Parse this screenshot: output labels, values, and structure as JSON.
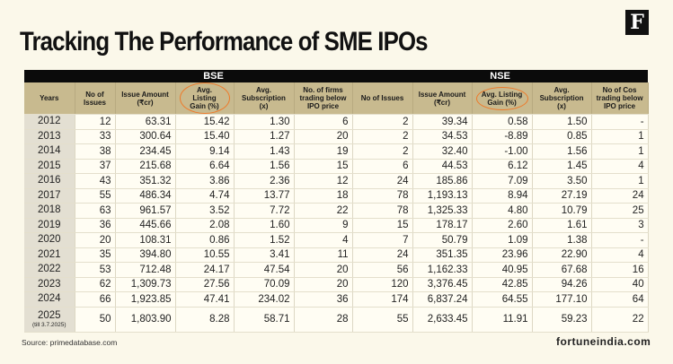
{
  "title": "Tracking The Performance of SME IPOs",
  "logo": "F",
  "groups": {
    "bse": "BSE",
    "nse": "NSE"
  },
  "headers": {
    "years": "Years",
    "bse": [
      "No of Issues",
      "Issue Amount (₹cr)",
      "Avg. Listing Gain (%)",
      "Avg. Subscription (x)",
      "No. of firms trading below IPO price"
    ],
    "nse": [
      "No of Issues",
      "Issue Amount (₹cr)",
      "Avg. Listing Gain (%)",
      "Avg. Subscription (x)",
      "No of Cos trading below IPO price"
    ]
  },
  "rows": [
    {
      "year": "2012",
      "note": "",
      "bse": [
        "12",
        "63.31",
        "15.42",
        "1.30",
        "6"
      ],
      "nse": [
        "2",
        "39.34",
        "0.58",
        "1.50",
        "-"
      ]
    },
    {
      "year": "2013",
      "note": "",
      "bse": [
        "33",
        "300.64",
        "15.40",
        "1.27",
        "20"
      ],
      "nse": [
        "2",
        "34.53",
        "-8.89",
        "0.85",
        "1"
      ]
    },
    {
      "year": "2014",
      "note": "",
      "bse": [
        "38",
        "234.45",
        "9.14",
        "1.43",
        "19"
      ],
      "nse": [
        "2",
        "32.40",
        "-1.00",
        "1.56",
        "1"
      ]
    },
    {
      "year": "2015",
      "note": "",
      "bse": [
        "37",
        "215.68",
        "6.64",
        "1.56",
        "15"
      ],
      "nse": [
        "6",
        "44.53",
        "6.12",
        "1.45",
        "4"
      ]
    },
    {
      "year": "2016",
      "note": "",
      "bse": [
        "43",
        "351.32",
        "3.86",
        "2.36",
        "12"
      ],
      "nse": [
        "24",
        "185.86",
        "7.09",
        "3.50",
        "1"
      ]
    },
    {
      "year": "2017",
      "note": "",
      "bse": [
        "55",
        "486.34",
        "4.74",
        "13.77",
        "18"
      ],
      "nse": [
        "78",
        "1,193.13",
        "8.94",
        "27.19",
        "24"
      ]
    },
    {
      "year": "2018",
      "note": "",
      "bse": [
        "63",
        "961.57",
        "3.52",
        "7.72",
        "22"
      ],
      "nse": [
        "78",
        "1,325.33",
        "4.80",
        "10.79",
        "25"
      ]
    },
    {
      "year": "2019",
      "note": "",
      "bse": [
        "36",
        "445.66",
        "2.08",
        "1.60",
        "9"
      ],
      "nse": [
        "15",
        "178.17",
        "2.60",
        "1.61",
        "3"
      ]
    },
    {
      "year": "2020",
      "note": "",
      "bse": [
        "20",
        "108.31",
        "0.86",
        "1.52",
        "4"
      ],
      "nse": [
        "7",
        "50.79",
        "1.09",
        "1.38",
        "-"
      ]
    },
    {
      "year": "2021",
      "note": "",
      "bse": [
        "35",
        "394.80",
        "10.55",
        "3.41",
        "11"
      ],
      "nse": [
        "24",
        "351.35",
        "23.96",
        "22.90",
        "4"
      ]
    },
    {
      "year": "2022",
      "note": "",
      "bse": [
        "53",
        "712.48",
        "24.17",
        "47.54",
        "20"
      ],
      "nse": [
        "56",
        "1,162.33",
        "40.95",
        "67.68",
        "16"
      ]
    },
    {
      "year": "2023",
      "note": "",
      "bse": [
        "62",
        "1,309.73",
        "27.56",
        "70.09",
        "20"
      ],
      "nse": [
        "120",
        "3,376.45",
        "42.85",
        "94.26",
        "40"
      ]
    },
    {
      "year": "2024",
      "note": "",
      "bse": [
        "66",
        "1,923.85",
        "47.41",
        "234.02",
        "36"
      ],
      "nse": [
        "174",
        "6,837.24",
        "64.55",
        "177.10",
        "64"
      ]
    },
    {
      "year": "2025",
      "note": "(till 3.7.2025)",
      "bse": [
        "50",
        "1,803.90",
        "8.28",
        "58.71",
        "28"
      ],
      "nse": [
        "55",
        "2,633.45",
        "11.91",
        "59.23",
        "22"
      ]
    }
  ],
  "source": "Source: primedatabase.com",
  "site": "fortuneindia.com",
  "colors": {
    "background": "#fbf8ea",
    "header": "#c8ba8f",
    "highlight_circle": "#ee7a2a"
  }
}
